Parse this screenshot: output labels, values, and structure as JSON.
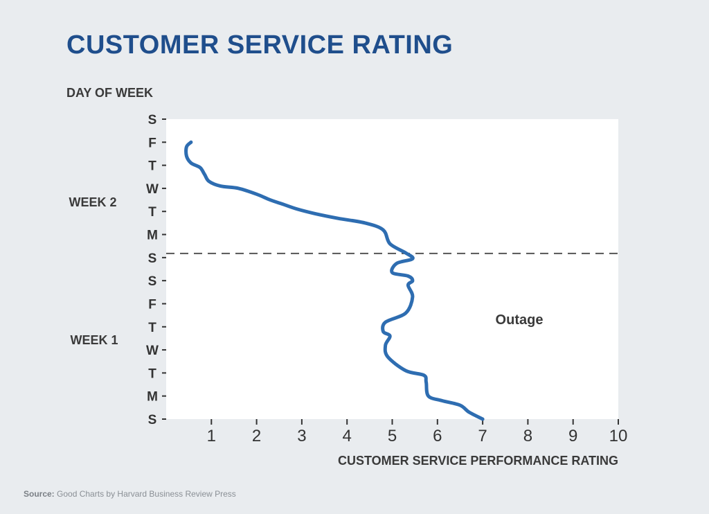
{
  "title": "CUSTOMER SERVICE RATING",
  "source": {
    "label": "Source:",
    "text": "Good Charts by Harvard Business Review Press"
  },
  "chart_data": {
    "type": "line",
    "title": "CUSTOMER SERVICE RATING",
    "ylabel": "DAY OF WEEK",
    "xlabel": "CUSTOMER SERVICE PERFORMANCE RATING",
    "xlim": [
      0,
      10
    ],
    "x_ticks": [
      "1",
      "2",
      "3",
      "4",
      "5",
      "6",
      "7",
      "8",
      "9",
      "10"
    ],
    "y_ticks": [
      "S",
      "M",
      "T",
      "W",
      "T",
      "F",
      "S",
      "S",
      "M",
      "T",
      "W",
      "T",
      "F",
      "S"
    ],
    "week_labels": [
      "WEEK 1",
      "WEEK 2"
    ],
    "annotation": {
      "text": "Outage"
    },
    "outage_y": 7.18,
    "grid": false,
    "series": [
      {
        "color": "#2e6db1",
        "points": [
          [
            7.0,
            0
          ],
          [
            6.7,
            0.3
          ],
          [
            6.5,
            0.6
          ],
          [
            6.1,
            0.8
          ],
          [
            5.8,
            1.0
          ],
          [
            5.75,
            1.6
          ],
          [
            5.7,
            1.9
          ],
          [
            5.3,
            2.1
          ],
          [
            4.9,
            2.7
          ],
          [
            4.85,
            3.2
          ],
          [
            4.95,
            3.6
          ],
          [
            4.8,
            3.8
          ],
          [
            4.85,
            4.2
          ],
          [
            5.3,
            4.6
          ],
          [
            5.45,
            5.3
          ],
          [
            5.35,
            5.8
          ],
          [
            5.45,
            6.0
          ],
          [
            5.35,
            6.2
          ],
          [
            5.0,
            6.35
          ],
          [
            5.1,
            6.75
          ],
          [
            5.45,
            6.95
          ],
          [
            5.3,
            7.2
          ],
          [
            4.95,
            7.6
          ],
          [
            4.8,
            8.2
          ],
          [
            4.4,
            8.5
          ],
          [
            3.8,
            8.7
          ],
          [
            3.3,
            8.9
          ],
          [
            2.9,
            9.1
          ],
          [
            2.6,
            9.3
          ],
          [
            2.3,
            9.5
          ],
          [
            2.0,
            9.75
          ],
          [
            1.6,
            10.0
          ],
          [
            1.2,
            10.1
          ],
          [
            0.95,
            10.3
          ],
          [
            0.85,
            10.6
          ],
          [
            0.75,
            10.9
          ],
          [
            0.55,
            11.1
          ],
          [
            0.45,
            11.4
          ],
          [
            0.45,
            11.8
          ],
          [
            0.55,
            12.0
          ]
        ]
      }
    ]
  }
}
